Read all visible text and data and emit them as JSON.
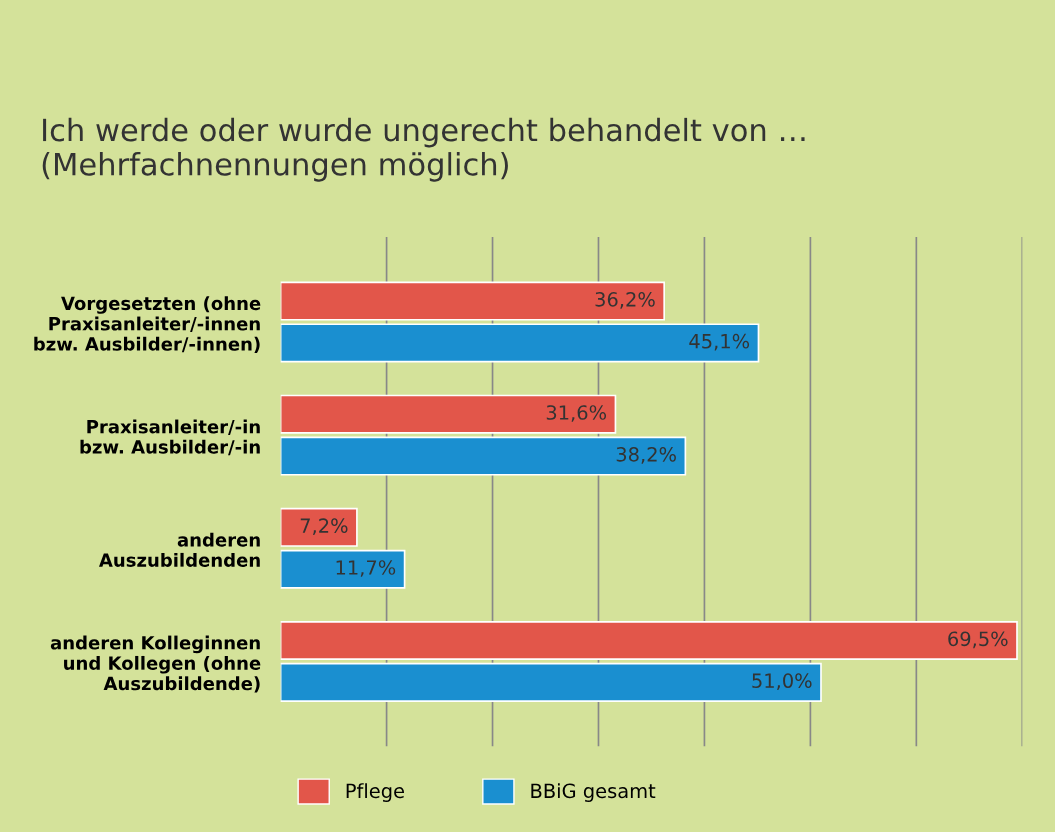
{
  "chart_data": {
    "type": "bar",
    "orientation": "horizontal",
    "title": "Ich werde oder wurde ungerecht behandelt von …\n(Mehrfachnennungen möglich)",
    "categories": [
      "Vorgesetzten (ohne\nPraxisanleiter/-innen\nbzw. Ausbilder/-innen)",
      "Praxisanleiter/-in\nbzw. Ausbilder/-in",
      "anderen\nAuszubildenden",
      "anderen Kolleginnen\nund Kollegen (ohne\nAuszubildende)"
    ],
    "series": [
      {
        "name": "Pflege",
        "color": "#e2564a",
        "values": [
          36.2,
          31.6,
          7.2,
          69.5
        ],
        "value_labels": [
          "36,2%",
          "31,6%",
          "7,2%",
          "69,5%"
        ]
      },
      {
        "name": "BBiG gesamt",
        "color": "#1a8fd0",
        "values": [
          45.1,
          38.2,
          11.7,
          51.0
        ],
        "value_labels": [
          "45,1%",
          "38,2%",
          "11,7%",
          "51,0%"
        ]
      }
    ],
    "xlim": [
      0,
      70
    ],
    "xticks": [
      {
        "value": 10,
        "label": null
      },
      {
        "value": 20,
        "label": null
      },
      {
        "value": 30,
        "label": null
      },
      {
        "value": 40,
        "label": null
      },
      {
        "value": 50,
        "label": null
      },
      {
        "value": 60,
        "label": null
      },
      {
        "value": 70,
        "label": null
      }
    ],
    "grid": "x",
    "legend": "bottom"
  }
}
